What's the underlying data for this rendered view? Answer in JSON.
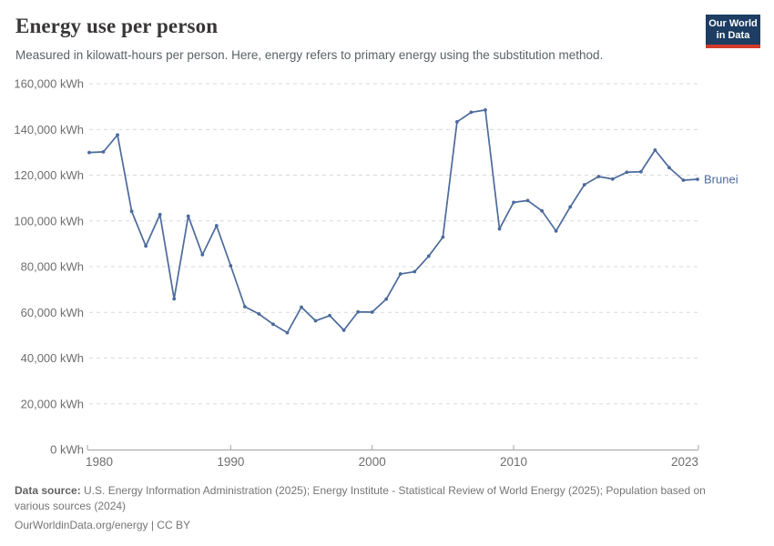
{
  "header": {
    "title": "Energy use per person",
    "subtitle": "Measured in kilowatt-hours per person. Here, energy refers to primary energy using the substitution method.",
    "logo": {
      "line1": "Our World",
      "line2": "in Data",
      "bg_color": "#1d3d63",
      "accent_color": "#d23a2b"
    }
  },
  "chart_data": {
    "type": "line",
    "title": "Energy use per person",
    "unit": "kWh",
    "xlim": [
      1980,
      2023
    ],
    "ylim": [
      0,
      160000
    ],
    "yticks": [
      0,
      20000,
      40000,
      60000,
      80000,
      100000,
      120000,
      140000,
      160000
    ],
    "xticks": [
      1980,
      1990,
      2000,
      2010,
      2023
    ],
    "grid": "horizontal-dashed",
    "legend_position": "end-of-line-label",
    "grid_color": "#d9d9d9",
    "axis_color": "#a3a3a3",
    "axis_label_color": "#6e6e6e",
    "x": [
      1980,
      1981,
      1982,
      1983,
      1984,
      1985,
      1986,
      1987,
      1988,
      1989,
      1990,
      1991,
      1992,
      1993,
      1994,
      1995,
      1996,
      1997,
      1998,
      1999,
      2000,
      2001,
      2002,
      2003,
      2004,
      2005,
      2006,
      2007,
      2008,
      2009,
      2010,
      2011,
      2012,
      2013,
      2014,
      2015,
      2016,
      2017,
      2018,
      2019,
      2020,
      2021,
      2022,
      2023
    ],
    "series": [
      {
        "name": "Brunei",
        "color": "#4c6a9c",
        "values": [
          129900,
          130200,
          137600,
          104200,
          89000,
          102800,
          65900,
          102100,
          85200,
          97900,
          80400,
          62500,
          59300,
          54800,
          51100,
          62300,
          56300,
          58600,
          52200,
          60200,
          60100,
          65800,
          76800,
          77800,
          84600,
          92900,
          143300,
          147500,
          148500,
          96500,
          108100,
          108900,
          104400,
          95600,
          106100,
          115800,
          119400,
          118300,
          121300,
          121500,
          131000,
          123300,
          117800,
          118200
        ]
      }
    ]
  },
  "footer": {
    "datasource_label": "Data source:",
    "datasource_text": "U.S. Energy Information Administration (2025); Energy Institute - Statistical Review of World Energy (2025); Population based on various sources (2024)",
    "license_text": "OurWorldinData.org/energy | CC BY"
  }
}
